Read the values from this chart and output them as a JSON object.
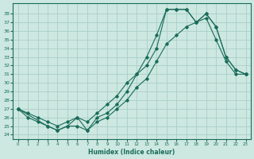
{
  "xlabel": "Humidex (Indice chaleur)",
  "bg_color": "#cce8e0",
  "line_color": "#1a6b5a",
  "grid_color": "#aacec8",
  "xlim": [
    -0.5,
    23.5
  ],
  "ylim": [
    23.5,
    39.2
  ],
  "xticks": [
    0,
    1,
    2,
    3,
    4,
    5,
    6,
    7,
    8,
    9,
    10,
    11,
    12,
    13,
    14,
    15,
    16,
    17,
    18,
    19,
    20,
    21,
    22,
    23
  ],
  "yticks": [
    24,
    25,
    26,
    27,
    28,
    29,
    30,
    31,
    32,
    33,
    34,
    35,
    36,
    37,
    38
  ],
  "line1_x": [
    0,
    1,
    2,
    3,
    4,
    5,
    6,
    7,
    8,
    9,
    10,
    11,
    12,
    13,
    14,
    15,
    16,
    17,
    18,
    19,
    20,
    21,
    22,
    23
  ],
  "line1_y": [
    27.0,
    26.5,
    26.0,
    25.5,
    25.0,
    25.5,
    26.0,
    25.5,
    26.5,
    27.5,
    28.5,
    30.0,
    31.0,
    32.0,
    34.0,
    38.5,
    38.5,
    38.5,
    37.0,
    38.0,
    36.5,
    33.0,
    31.5,
    31.0
  ],
  "line2_x": [
    0,
    3,
    4,
    5,
    6,
    7,
    8,
    9,
    10,
    11,
    12,
    13,
    14,
    15,
    16,
    17,
    18,
    19,
    20,
    21,
    22,
    23
  ],
  "line2_y": [
    27.0,
    25.0,
    24.5,
    25.0,
    26.0,
    24.5,
    26.0,
    26.5,
    27.5,
    29.0,
    31.0,
    33.0,
    35.5,
    38.5,
    38.5,
    38.5,
    37.0,
    38.0,
    36.5,
    33.0,
    31.5,
    31.0
  ],
  "line3_x": [
    0,
    1,
    2,
    3,
    4,
    5,
    6,
    7,
    8,
    9,
    10,
    11,
    12,
    13,
    14,
    15,
    16,
    17,
    18,
    19,
    20,
    21,
    22,
    23
  ],
  "line3_y": [
    27.0,
    26.0,
    25.5,
    25.0,
    24.5,
    25.0,
    25.0,
    24.5,
    25.5,
    26.0,
    27.0,
    28.0,
    29.5,
    30.5,
    32.5,
    34.5,
    35.5,
    36.5,
    37.0,
    37.5,
    35.0,
    32.5,
    31.0,
    31.0
  ]
}
